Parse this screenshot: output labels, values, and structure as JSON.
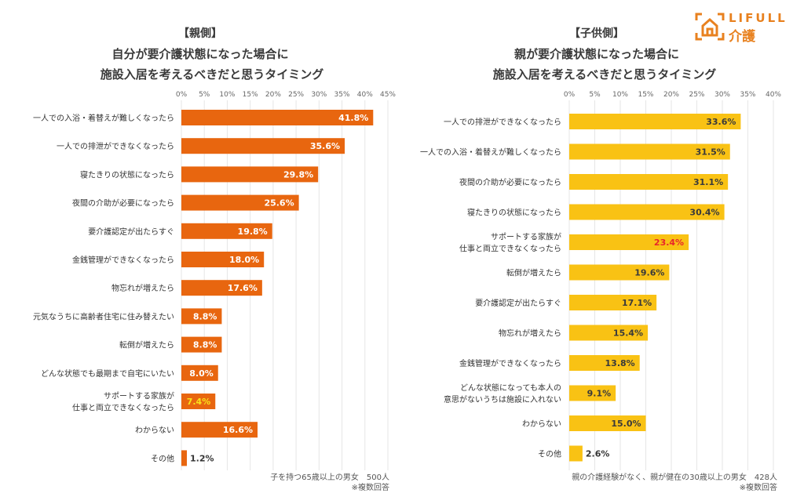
{
  "logo": {
    "line1": "LIFULL",
    "line2": "介護"
  },
  "chart_data": [
    {
      "type": "bar",
      "orientation": "horizontal",
      "title_tag": "【親側】",
      "title_line1": "自分が要介護状態になった場合に",
      "title_line2": "施設入居を考えるべきだと思うタイミング",
      "categories": [
        "一人での入浴・着替えが難しくなったら",
        "一人での排泄ができなくなったら",
        "寝たきりの状態になったら",
        "夜間の介助が必要になったら",
        "要介護認定が出たらすぐ",
        "金銭管理ができなくなったら",
        "物忘れが増えたら",
        "元気なうちに高齢者住宅に住み替えたい",
        "転倒が増えたら",
        "どんな状態でも最期まで自宅にいたい",
        "サポートする家族が\n仕事と両立できなくなったら",
        "わからない",
        "その他"
      ],
      "values": [
        41.8,
        35.6,
        29.8,
        25.6,
        19.8,
        18.0,
        17.6,
        8.8,
        8.8,
        8.0,
        7.4,
        16.6,
        1.2
      ],
      "data_labels": [
        "41.8%",
        "35.6%",
        "29.8%",
        "25.6%",
        "19.8%",
        "18.0%",
        "17.6%",
        "8.8%",
        "8.8%",
        "8.0%",
        "7.4%",
        "16.6%",
        "1.2%"
      ],
      "highlight_index": 10,
      "xlim": [
        0,
        45
      ],
      "ticks": [
        "0%",
        "5%",
        "10%",
        "15%",
        "20%",
        "25%",
        "30%",
        "35%",
        "40%",
        "45%"
      ],
      "grid": true,
      "bar_color": "#E8660F",
      "label_color": "#FFFFFF",
      "highlight_color": "#F9E21B",
      "note_line1": "子を持つ65歳以上の男女　500人",
      "note_line2": "※複数回答"
    },
    {
      "type": "bar",
      "orientation": "horizontal",
      "title_tag": "【子供側】",
      "title_line1": "親が要介護状態になった場合に",
      "title_line2": "施設入居を考えるべきだと思うタイミング",
      "categories": [
        "一人での排泄ができなくなったら",
        "一人での入浴・着替えが難しくなったら",
        "夜間の介助が必要になったら",
        "寝たきりの状態になったら",
        "サポートする家族が\n仕事と両立できなくなったら",
        "転倒が増えたら",
        "要介護認定が出たらすぐ",
        "物忘れが増えたら",
        "金銭管理ができなくなったら",
        "どんな状態になっても本人の\n意思がないうちは施設に入れない",
        "わからない",
        "その他"
      ],
      "values": [
        33.6,
        31.5,
        31.1,
        30.4,
        23.4,
        19.6,
        17.1,
        15.4,
        13.8,
        9.1,
        15.0,
        2.6
      ],
      "data_labels": [
        "33.6%",
        "31.5%",
        "31.1%",
        "30.4%",
        "23.4%",
        "19.6%",
        "17.1%",
        "15.4%",
        "13.8%",
        "9.1%",
        "15.0%",
        "2.6%"
      ],
      "highlight_index": 4,
      "xlim": [
        0,
        40
      ],
      "ticks": [
        "0%",
        "5%",
        "10%",
        "15%",
        "20%",
        "25%",
        "30%",
        "35%",
        "40%"
      ],
      "grid": true,
      "bar_color": "#F9C214",
      "label_color": "#3A3A3A",
      "highlight_color": "#E8262A",
      "note_line1": "親の介護経験がなく、親が健在の30歳以上の男女　428人",
      "note_line2": "※複数回答"
    }
  ]
}
